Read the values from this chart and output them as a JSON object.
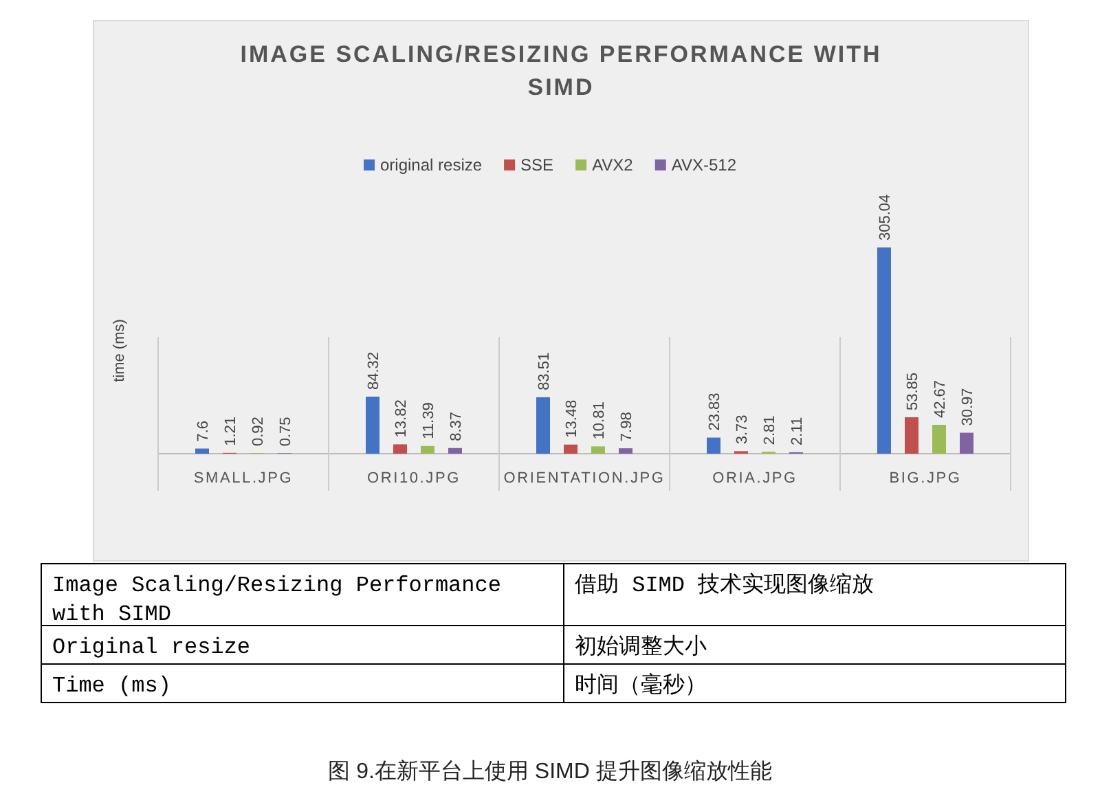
{
  "chart_data": {
    "type": "bar",
    "title": "IMAGE SCALING/RESIZING PERFORMANCE WITH SIMD",
    "ylabel": "time (ms)",
    "categories": [
      "SMALL.JPG",
      "ORI10.JPG",
      "ORIENTATION.JPG",
      "ORIA.JPG",
      "BIG.JPG"
    ],
    "series": [
      {
        "name": "original resize",
        "color": "#4472c4",
        "values": [
          7.6,
          84.32,
          83.51,
          23.83,
          305.04
        ]
      },
      {
        "name": "SSE",
        "color": "#c0504d",
        "values": [
          1.21,
          13.82,
          13.48,
          3.73,
          53.85
        ]
      },
      {
        "name": "AVX2",
        "color": "#9bbb59",
        "values": [
          0.92,
          11.39,
          10.81,
          2.81,
          42.67
        ]
      },
      {
        "name": "AVX-512",
        "color": "#8064a2",
        "values": [
          0.75,
          8.37,
          7.98,
          2.11,
          30.97
        ]
      }
    ],
    "relative": false,
    "data_labels": true,
    "legend": "top",
    "grid": false,
    "annotations": [
      "Image Scaling/Resizing Performance with SIMD",
      "借助 SIMD 技术实现图像缩放",
      "Original resize",
      "初始调整大小",
      "Time (ms)",
      "时间（毫秒）",
      "图 9.在新平台上使用 SIMD 提升图像缩放性能"
    ]
  }
}
